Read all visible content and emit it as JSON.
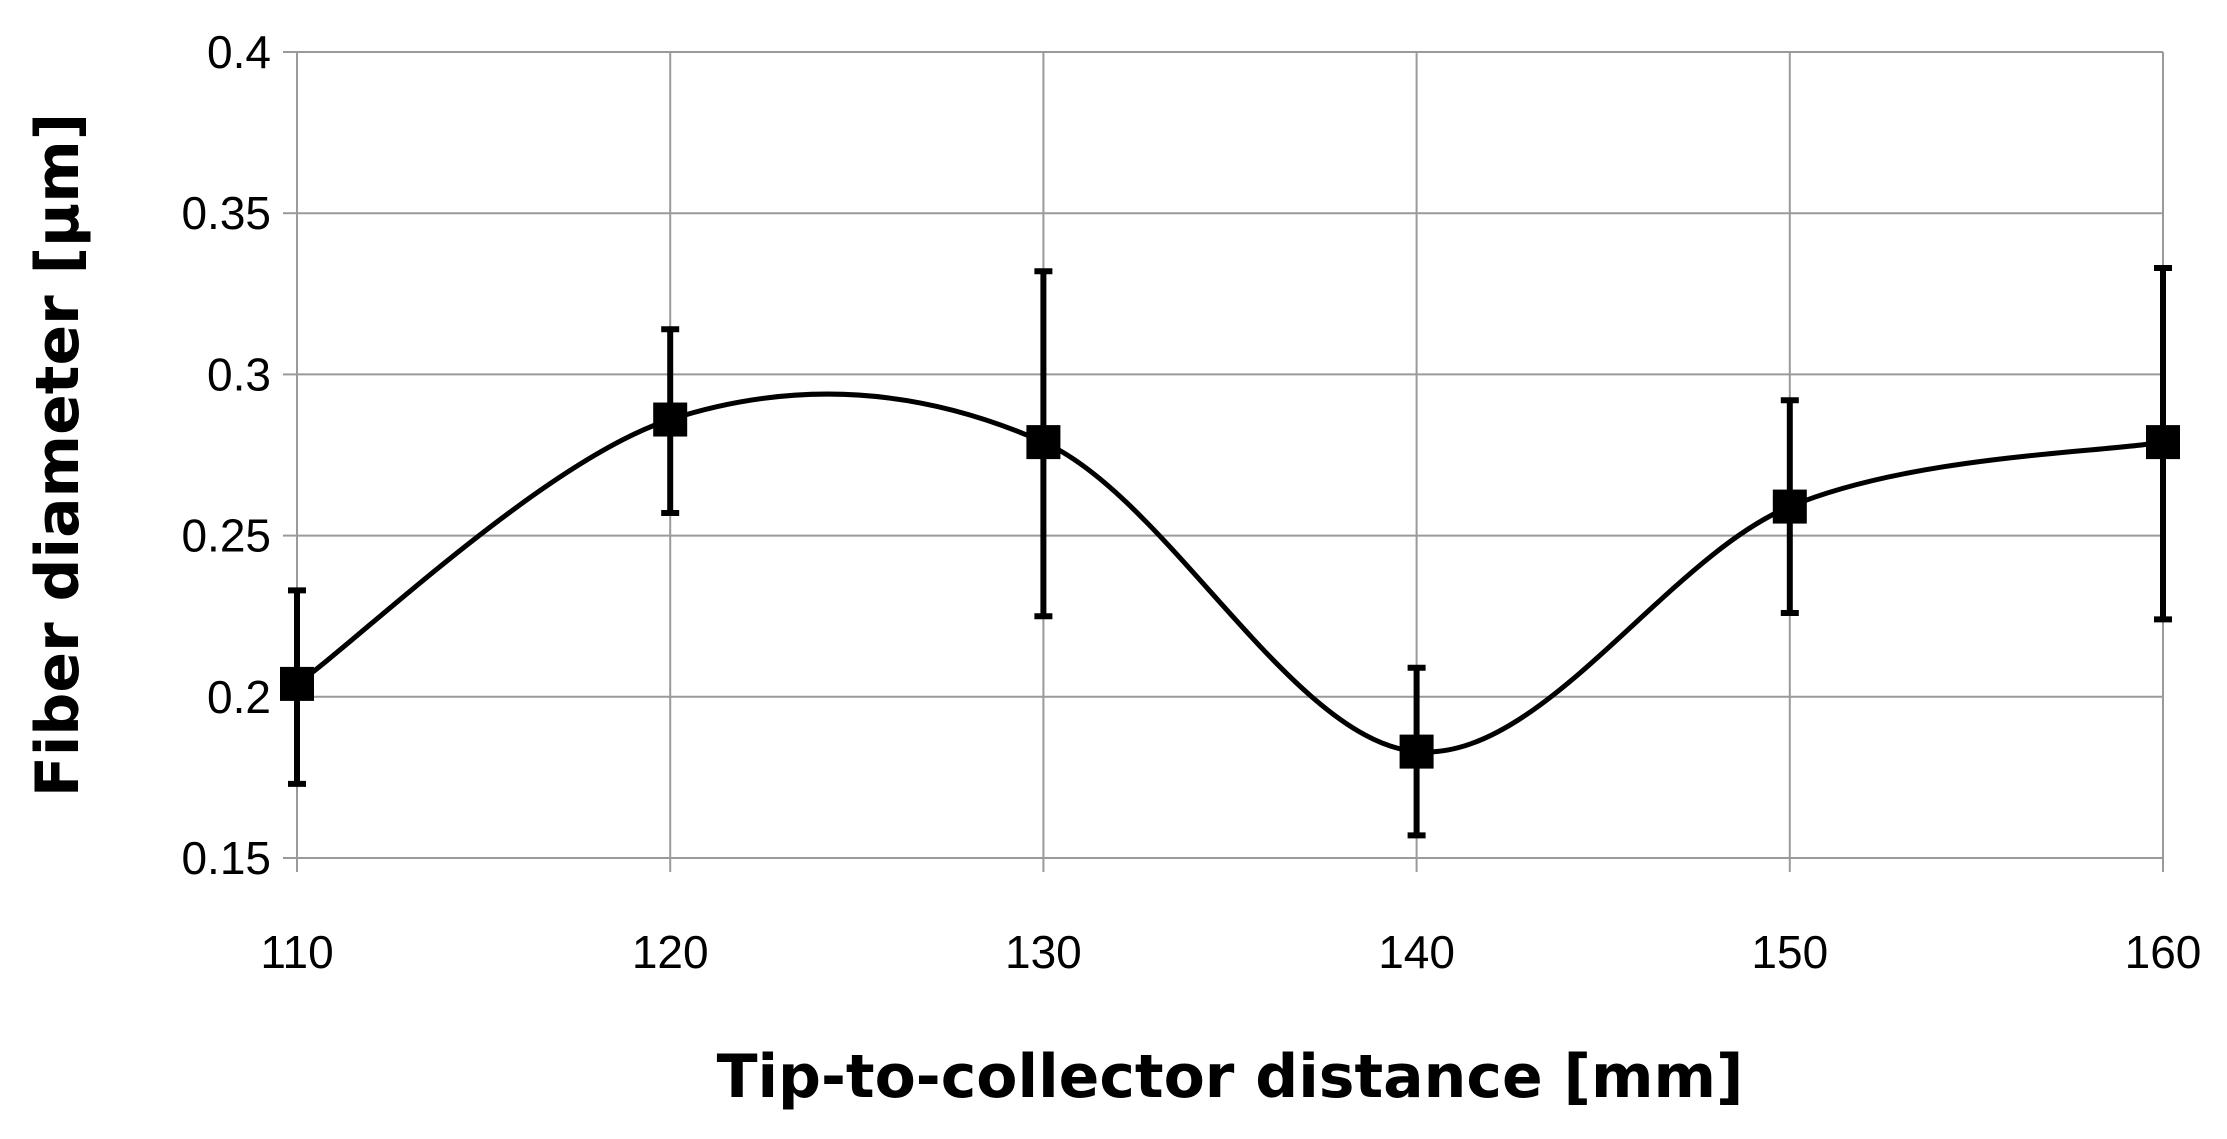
{
  "chart_data": {
    "type": "line",
    "title": "",
    "xlabel": "Tip-to-collector distance [mm]",
    "ylabel": "Fiber diameter [µm]",
    "xlim": [
      110,
      160
    ],
    "ylim": [
      0.15,
      0.4
    ],
    "x_ticks": [
      "110",
      "120",
      "130",
      "140",
      "150",
      "160"
    ],
    "y_ticks": [
      "0.15",
      "0.2",
      "0.25",
      "0.3",
      "0.35",
      "0.4"
    ],
    "grid": true,
    "smooth": true,
    "marker": "square",
    "series": [
      {
        "x": [
          110,
          120,
          130,
          140,
          150,
          160
        ],
        "y": [
          0.204,
          0.286,
          0.279,
          0.183,
          0.259,
          0.279
        ],
        "error_upper": [
          0.233,
          0.314,
          0.332,
          0.209,
          0.292,
          0.333
        ],
        "error_lower": [
          0.173,
          0.257,
          0.225,
          0.157,
          0.226,
          0.224
        ]
      }
    ],
    "colors": {
      "line": "#000000",
      "grid": "#9a9a9a",
      "background": "#ffffff"
    }
  }
}
